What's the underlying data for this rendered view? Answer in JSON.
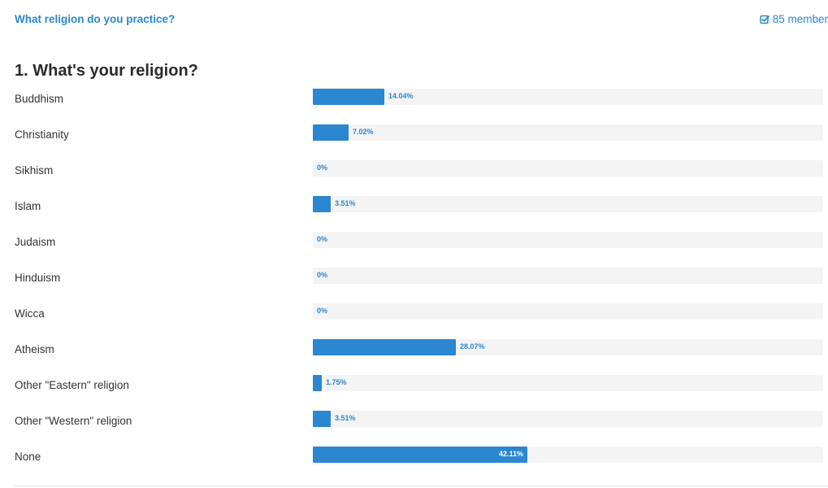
{
  "header": {
    "poll_title": "What religion do you practice?",
    "members_label": "85 member",
    "members_icon": "checkbox-checked-icon",
    "accent_color": "#2a87d0"
  },
  "question": {
    "title": "1. What's your religion?",
    "options": [
      {
        "label": "Buddhism",
        "percent_label": "14.04%",
        "percent": 14.04
      },
      {
        "label": "Christianity",
        "percent_label": "7.02%",
        "percent": 7.02
      },
      {
        "label": "Sikhism",
        "percent_label": "0%",
        "percent": 0
      },
      {
        "label": "Islam",
        "percent_label": "3.51%",
        "percent": 3.51
      },
      {
        "label": "Judaism",
        "percent_label": "0%",
        "percent": 0
      },
      {
        "label": "Hinduism",
        "percent_label": "0%",
        "percent": 0
      },
      {
        "label": "Wicca",
        "percent_label": "0%",
        "percent": 0
      },
      {
        "label": "Atheism",
        "percent_label": "28.07%",
        "percent": 28.07
      },
      {
        "label": "Other \"Eastern\" religion",
        "percent_label": "1.75%",
        "percent": 1.75
      },
      {
        "label": "Other \"Western\" religion",
        "percent_label": "3.51%",
        "percent": 3.51
      },
      {
        "label": "None",
        "percent_label": "42.11%",
        "percent": 42.11
      }
    ]
  }
}
